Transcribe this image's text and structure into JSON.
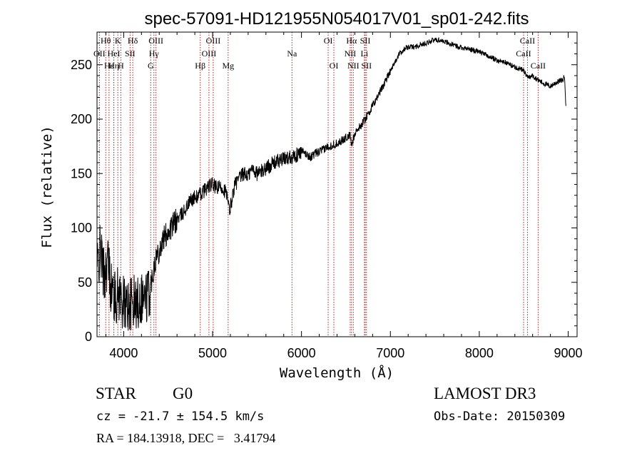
{
  "chart_data": {
    "type": "line",
    "title": "spec-57091-HD121955N054017V01_sp01-242.fits",
    "xlabel": "Wavelength (Å)",
    "ylabel": "Flux (relative)",
    "xlim": [
      3700,
      9100
    ],
    "ylim": [
      0,
      280
    ],
    "xticks": [
      4000,
      5000,
      6000,
      7000,
      8000,
      9000
    ],
    "xtick_labels": [
      "4000",
      "5000",
      "6000",
      "7000",
      "8000",
      "9000"
    ],
    "yticks": [
      0,
      50,
      100,
      150,
      200,
      250
    ],
    "ytick_labels": [
      "0",
      "50",
      "100",
      "150",
      "200",
      "250"
    ],
    "spectrum": [
      [
        3700,
        62
      ],
      [
        3740,
        80
      ],
      [
        3780,
        55
      ],
      [
        3820,
        72
      ],
      [
        3860,
        45
      ],
      [
        3900,
        35
      ],
      [
        3950,
        40
      ],
      [
        4000,
        30
      ],
      [
        4050,
        28
      ],
      [
        4100,
        32
      ],
      [
        4150,
        30
      ],
      [
        4200,
        38
      ],
      [
        4250,
        35
      ],
      [
        4300,
        45
      ],
      [
        4350,
        70
      ],
      [
        4400,
        80
      ],
      [
        4450,
        90
      ],
      [
        4500,
        97
      ],
      [
        4550,
        102
      ],
      [
        4600,
        108
      ],
      [
        4650,
        112
      ],
      [
        4700,
        118
      ],
      [
        4750,
        125
      ],
      [
        4800,
        128
      ],
      [
        4850,
        130
      ],
      [
        4900,
        134
      ],
      [
        4950,
        138
      ],
      [
        5000,
        140
      ],
      [
        5050,
        136
      ],
      [
        5100,
        138
      ],
      [
        5150,
        133
      ],
      [
        5190,
        115
      ],
      [
        5250,
        140
      ],
      [
        5300,
        145
      ],
      [
        5350,
        150
      ],
      [
        5400,
        148
      ],
      [
        5450,
        155
      ],
      [
        5500,
        150
      ],
      [
        5550,
        152
      ],
      [
        5600,
        155
      ],
      [
        5650,
        158
      ],
      [
        5700,
        160
      ],
      [
        5750,
        162
      ],
      [
        5800,
        163
      ],
      [
        5850,
        165
      ],
      [
        5900,
        166
      ],
      [
        5950,
        167
      ],
      [
        6000,
        170
      ],
      [
        6050,
        168
      ],
      [
        6100,
        165
      ],
      [
        6150,
        168
      ],
      [
        6200,
        170
      ],
      [
        6250,
        172
      ],
      [
        6300,
        175
      ],
      [
        6350,
        176
      ],
      [
        6400,
        178
      ],
      [
        6450,
        180
      ],
      [
        6500,
        183
      ],
      [
        6550,
        185
      ],
      [
        6563,
        175
      ],
      [
        6600,
        188
      ],
      [
        6650,
        192
      ],
      [
        6700,
        198
      ],
      [
        6750,
        205
      ],
      [
        6800,
        212
      ],
      [
        6850,
        220
      ],
      [
        6900,
        228
      ],
      [
        6950,
        236
      ],
      [
        7000,
        245
      ],
      [
        7050,
        252
      ],
      [
        7100,
        260
      ],
      [
        7150,
        264
      ],
      [
        7200,
        266
      ],
      [
        7300,
        267
      ],
      [
        7400,
        270
      ],
      [
        7500,
        273
      ],
      [
        7600,
        272
      ],
      [
        7700,
        268
      ],
      [
        7800,
        266
      ],
      [
        7900,
        264
      ],
      [
        8000,
        262
      ],
      [
        8100,
        258
      ],
      [
        8200,
        254
      ],
      [
        8300,
        252
      ],
      [
        8400,
        248
      ],
      [
        8500,
        245
      ],
      [
        8540,
        238
      ],
      [
        8600,
        240
      ],
      [
        8662,
        236
      ],
      [
        8700,
        234
      ],
      [
        8750,
        232
      ],
      [
        8800,
        230
      ],
      [
        8850,
        233
      ],
      [
        8900,
        235
      ],
      [
        8940,
        236
      ],
      [
        8960,
        240
      ],
      [
        8975,
        210
      ]
    ],
    "lines": [
      {
        "label": "Hθ",
        "wl": 3798,
        "row": 1
      },
      {
        "label": "K",
        "wl": 3934,
        "row": 1
      },
      {
        "label": "Hδ",
        "wl": 4102,
        "row": 1
      },
      {
        "label": "OIII",
        "wl": 4363,
        "row": 1
      },
      {
        "label": "OIII",
        "wl": 5007,
        "row": 1
      },
      {
        "label": "OI",
        "wl": 6300,
        "row": 1
      },
      {
        "label": "Hα",
        "wl": 6563,
        "row": 1
      },
      {
        "label": "SII",
        "wl": 6717,
        "row": 1
      },
      {
        "label": "CaII",
        "wl": 8542,
        "row": 1
      },
      {
        "label": "OII",
        "wl": 3727,
        "row": 2
      },
      {
        "label": "HeI",
        "wl": 3889,
        "row": 2
      },
      {
        "label": "SII",
        "wl": 4072,
        "row": 2
      },
      {
        "label": "Hγ",
        "wl": 4340,
        "row": 2
      },
      {
        "label": "OIII",
        "wl": 4959,
        "row": 2
      },
      {
        "label": "Na",
        "wl": 5893,
        "row": 2
      },
      {
        "label": "NII",
        "wl": 6548,
        "row": 2
      },
      {
        "label": "Li",
        "wl": 6708,
        "row": 2
      },
      {
        "label": "CaII",
        "wl": 8498,
        "row": 2
      },
      {
        "label": "Hε",
        "wl": 3835,
        "row": 3
      },
      {
        "label": "Hη",
        "wl": 3889,
        "row": 3
      },
      {
        "label": "H",
        "wl": 3968,
        "row": 3
      },
      {
        "label": "G",
        "wl": 4304,
        "row": 3
      },
      {
        "label": "Hβ",
        "wl": 4861,
        "row": 3
      },
      {
        "label": "Mg",
        "wl": 5175,
        "row": 3
      },
      {
        "label": "OI",
        "wl": 6364,
        "row": 3
      },
      {
        "label": "NII",
        "wl": 6583,
        "row": 3
      },
      {
        "label": "SII",
        "wl": 6731,
        "row": 3
      },
      {
        "label": "CaII",
        "wl": 8662,
        "row": 3
      }
    ],
    "line_color": "#b22222",
    "spectrum_color": "#000000"
  },
  "info": {
    "object_class": "STAR",
    "subclass": "G0",
    "survey": "LAMOST DR3",
    "cz": "cz = -21.7 ± 154.5 km/s",
    "obs_date": "Obs-Date: 20150309",
    "coords": "RA = 184.13918, DEC =   3.41794"
  }
}
